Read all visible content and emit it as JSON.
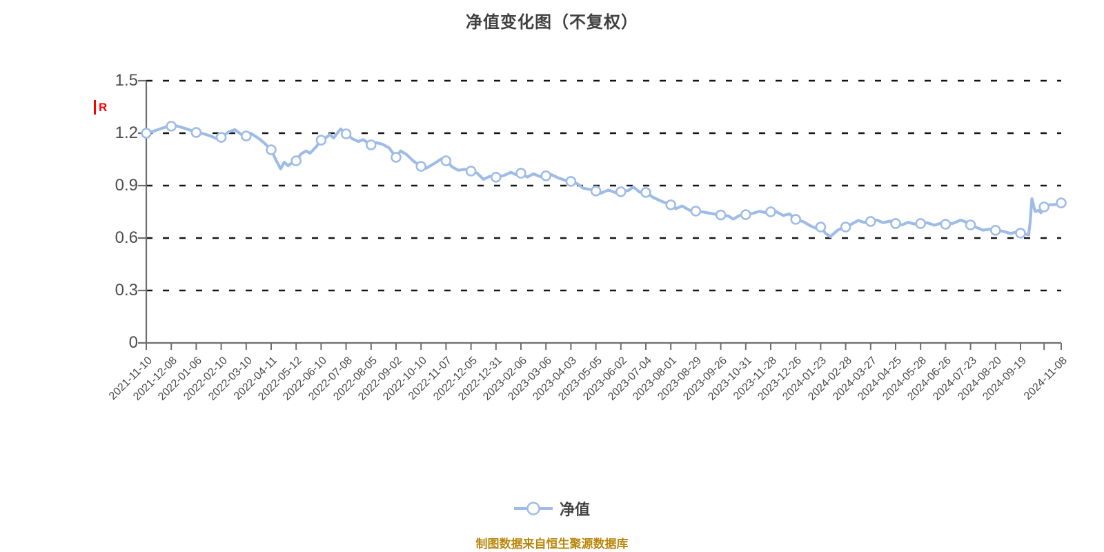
{
  "title": "净值变化图（不复权）",
  "dividend_marker_label": "R",
  "legend": {
    "label": "净值"
  },
  "footer": "制图数据来自恒生聚源数据库",
  "colors": {
    "line": "#9fbce6",
    "marker_fill": "#ffffff",
    "marker_stroke": "#9fbce6",
    "grid": "#151515",
    "axis": "#6e6e6e",
    "title_text": "#404040",
    "axis_text": "#4a4a4a",
    "footer_text": "#b8860b",
    "dividend_red": "#ff0000"
  },
  "chart_data": {
    "type": "line",
    "title": "净值变化图（不复权）",
    "series_name": "净值",
    "xlabel": "",
    "ylabel": "",
    "ylim": [
      0,
      1.5
    ],
    "ytick_labels": [
      "1.5",
      "1.2",
      "0.9",
      "0.6",
      "0.3",
      "0"
    ],
    "ytick_values": [
      1.5,
      1.2,
      0.9,
      0.6,
      0.3,
      0
    ],
    "grid": "horizontal-dashed",
    "legend_position": "bottom-center",
    "x_labels": [
      "2021-11-10",
      "2021-12-08",
      "2022-01-06",
      "2022-02-10",
      "2022-03-10",
      "2022-04-11",
      "2022-05-12",
      "2022-06-10",
      "2022-07-08",
      "2022-08-05",
      "2022-09-02",
      "2022-10-10",
      "2022-11-07",
      "2022-12-05",
      "2022-12-31",
      "2023-02-06",
      "2023-03-06",
      "2023-04-03",
      "2023-05-05",
      "2023-06-02",
      "2023-07-04",
      "2023-08-01",
      "2023-08-29",
      "2023-09-26",
      "2023-10-31",
      "2023-11-28",
      "2023-12-26",
      "2024-01-23",
      "2024-02-28",
      "2024-03-27",
      "2024-04-25",
      "2024-05-28",
      "2024-06-26",
      "2024-07-23",
      "2024-08-20",
      "2024-09-19",
      "2024-11-08"
    ],
    "points": [
      [
        0,
        1.2,
        1
      ],
      [
        0.3,
        1.212
      ],
      [
        0.55,
        1.224
      ],
      [
        0.8,
        1.236
      ],
      [
        1,
        1.24,
        1
      ],
      [
        1.12,
        1.245
      ],
      [
        1.4,
        1.234
      ],
      [
        1.7,
        1.22
      ],
      [
        2,
        1.204,
        1
      ],
      [
        2.3,
        1.196
      ],
      [
        2.55,
        1.185
      ],
      [
        2.8,
        1.17
      ],
      [
        3,
        1.176,
        1
      ],
      [
        3.3,
        1.207
      ],
      [
        3.55,
        1.22
      ],
      [
        3.8,
        1.193
      ],
      [
        4,
        1.184,
        1
      ],
      [
        4.2,
        1.198
      ],
      [
        4.5,
        1.17
      ],
      [
        4.75,
        1.14
      ],
      [
        5,
        1.105,
        1
      ],
      [
        5.2,
        1.044
      ],
      [
        5.38,
        0.996
      ],
      [
        5.52,
        1.034
      ],
      [
        5.68,
        1.014
      ],
      [
        5.85,
        1.032
      ],
      [
        6,
        1.042,
        1
      ],
      [
        6.2,
        1.082
      ],
      [
        6.4,
        1.098
      ],
      [
        6.55,
        1.085
      ],
      [
        6.8,
        1.122
      ],
      [
        7,
        1.16,
        1
      ],
      [
        7.2,
        1.175
      ],
      [
        7.35,
        1.192
      ],
      [
        7.5,
        1.172
      ],
      [
        7.78,
        1.224
      ],
      [
        8,
        1.196,
        1
      ],
      [
        8.25,
        1.168
      ],
      [
        8.5,
        1.152
      ],
      [
        8.68,
        1.163
      ],
      [
        8.85,
        1.147
      ],
      [
        9,
        1.133,
        1
      ],
      [
        9.2,
        1.146
      ],
      [
        9.45,
        1.137
      ],
      [
        9.72,
        1.116
      ],
      [
        10,
        1.062,
        1
      ],
      [
        10.18,
        1.098
      ],
      [
        10.4,
        1.08
      ],
      [
        10.7,
        1.04
      ],
      [
        11,
        1.01,
        1
      ],
      [
        11.2,
        0.999
      ],
      [
        11.5,
        1.024
      ],
      [
        11.8,
        1.052
      ],
      [
        12,
        1.042,
        1
      ],
      [
        12.25,
        1.006
      ],
      [
        12.5,
        0.988
      ],
      [
        12.75,
        0.993
      ],
      [
        13,
        0.983,
        1
      ],
      [
        13.25,
        0.971
      ],
      [
        13.5,
        0.936
      ],
      [
        13.75,
        0.953
      ],
      [
        14,
        0.948,
        1
      ],
      [
        14.3,
        0.957
      ],
      [
        14.6,
        0.976
      ],
      [
        14.82,
        0.961
      ],
      [
        15,
        0.971,
        1
      ],
      [
        15.25,
        0.949
      ],
      [
        15.5,
        0.967
      ],
      [
        15.78,
        0.951
      ],
      [
        16,
        0.956,
        1
      ],
      [
        16.2,
        0.964
      ],
      [
        16.5,
        0.944
      ],
      [
        16.8,
        0.929
      ],
      [
        17,
        0.924,
        1
      ],
      [
        17.25,
        0.911
      ],
      [
        17.5,
        0.885
      ],
      [
        17.78,
        0.877
      ],
      [
        18,
        0.869,
        1
      ],
      [
        18.2,
        0.856
      ],
      [
        18.5,
        0.875
      ],
      [
        18.8,
        0.859
      ],
      [
        19,
        0.865,
        1
      ],
      [
        19.3,
        0.872
      ],
      [
        19.5,
        0.892
      ],
      [
        19.75,
        0.863
      ],
      [
        20,
        0.861,
        1
      ],
      [
        20.3,
        0.832
      ],
      [
        20.6,
        0.812
      ],
      [
        20.8,
        0.801
      ],
      [
        21,
        0.79,
        1
      ],
      [
        21.2,
        0.768
      ],
      [
        21.45,
        0.783
      ],
      [
        21.75,
        0.759
      ],
      [
        22,
        0.754,
        1
      ],
      [
        22.3,
        0.749
      ],
      [
        22.55,
        0.742
      ],
      [
        22.8,
        0.736
      ],
      [
        23,
        0.732,
        1
      ],
      [
        23.3,
        0.726
      ],
      [
        23.5,
        0.709
      ],
      [
        23.75,
        0.729
      ],
      [
        24,
        0.734,
        1
      ],
      [
        24.3,
        0.742
      ],
      [
        24.55,
        0.753
      ],
      [
        24.8,
        0.745
      ],
      [
        25,
        0.75,
        1
      ],
      [
        25.15,
        0.757
      ],
      [
        25.5,
        0.729
      ],
      [
        25.75,
        0.738
      ],
      [
        26,
        0.707,
        1
      ],
      [
        26.3,
        0.694
      ],
      [
        26.6,
        0.669
      ],
      [
        26.8,
        0.657
      ],
      [
        27,
        0.663,
        1
      ],
      [
        27.2,
        0.626
      ],
      [
        27.38,
        0.608
      ],
      [
        27.7,
        0.647
      ],
      [
        28,
        0.663,
        1
      ],
      [
        28.25,
        0.681
      ],
      [
        28.5,
        0.701
      ],
      [
        28.75,
        0.689
      ],
      [
        29,
        0.695,
        1
      ],
      [
        29.25,
        0.703
      ],
      [
        29.5,
        0.688
      ],
      [
        29.78,
        0.697
      ],
      [
        30,
        0.683,
        1
      ],
      [
        30.25,
        0.675
      ],
      [
        30.5,
        0.69
      ],
      [
        30.75,
        0.68
      ],
      [
        31,
        0.683,
        1
      ],
      [
        31.25,
        0.688
      ],
      [
        31.55,
        0.674
      ],
      [
        31.8,
        0.684
      ],
      [
        32,
        0.679,
        1
      ],
      [
        32.3,
        0.684
      ],
      [
        32.6,
        0.703
      ],
      [
        32.85,
        0.69
      ],
      [
        33,
        0.675,
        1
      ],
      [
        33.25,
        0.66
      ],
      [
        33.5,
        0.645
      ],
      [
        33.78,
        0.651
      ],
      [
        34,
        0.644,
        1
      ],
      [
        34.3,
        0.639
      ],
      [
        34.6,
        0.626
      ],
      [
        34.85,
        0.635
      ],
      [
        35,
        0.628,
        1
      ],
      [
        35.1,
        0.624
      ],
      [
        35.2,
        0.618
      ],
      [
        35.24,
        0.7
      ],
      [
        35.28,
        0.825
      ],
      [
        35.36,
        0.752
      ],
      [
        35.44,
        0.758
      ],
      [
        35.5,
        0.745
      ],
      [
        35.58,
        0.778,
        1
      ],
      [
        35.7,
        0.79
      ],
      [
        35.85,
        0.792
      ],
      [
        36,
        0.801,
        1
      ]
    ]
  }
}
